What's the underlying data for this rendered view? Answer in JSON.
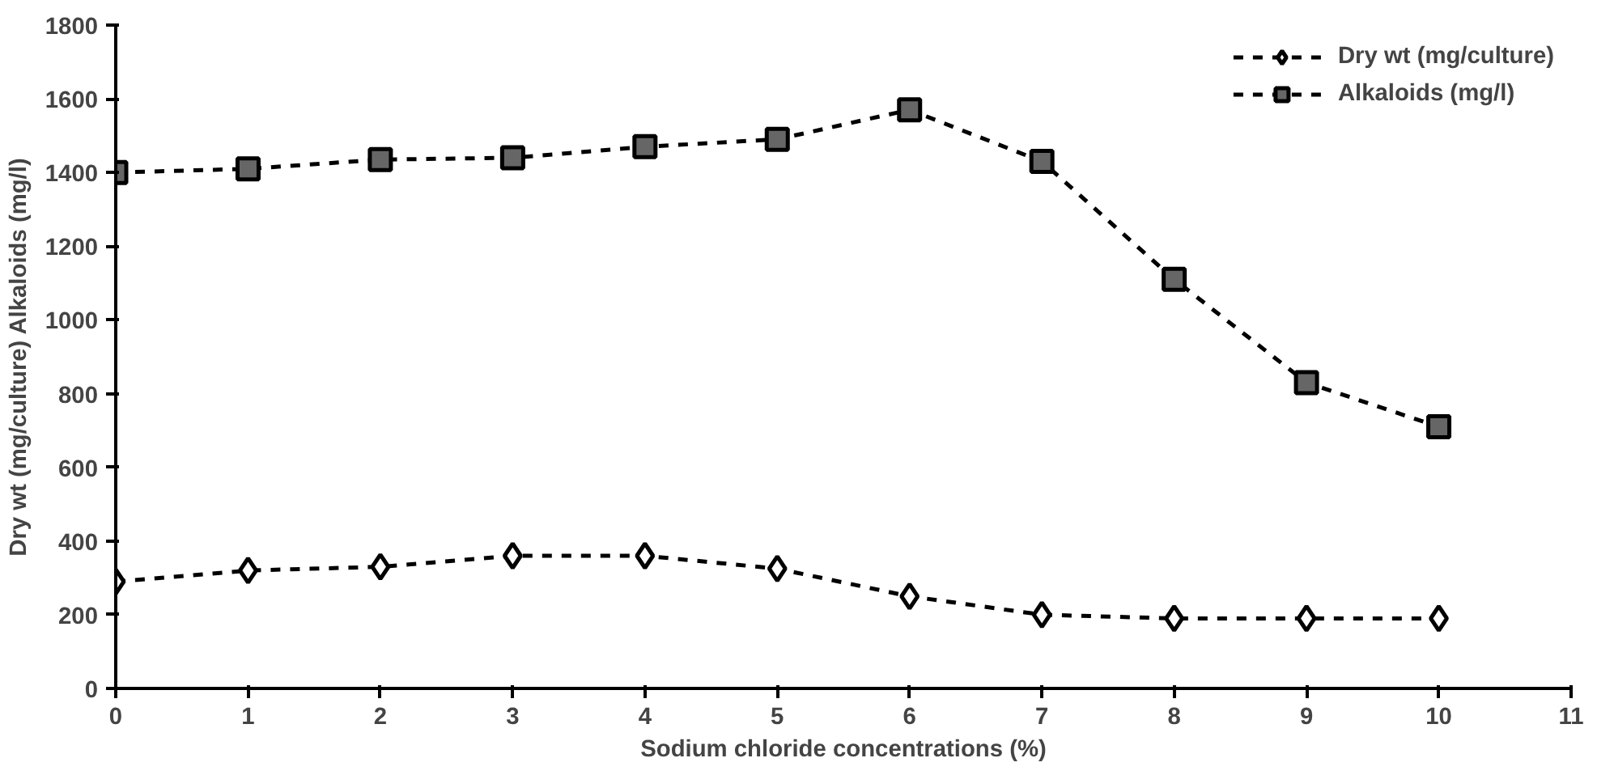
{
  "chart_data": {
    "type": "line",
    "xlabel": "Sodium chloride concentrations (%)",
    "ylabel": "Dry wt (mg/culture) Alkaloids (mg/l)",
    "x": [
      0,
      1,
      2,
      3,
      4,
      5,
      6,
      7,
      8,
      9,
      10
    ],
    "series": [
      {
        "name": "Dry wt (mg/culture)",
        "color": "#ffffff",
        "marker": "diamond",
        "values": [
          290,
          320,
          330,
          360,
          360,
          325,
          250,
          200,
          190,
          190,
          190
        ]
      },
      {
        "name": "Alkaloids (mg/l)",
        "color": "#666666",
        "marker": "square",
        "values": [
          1400,
          1410,
          1435,
          1440,
          1470,
          1490,
          1570,
          1430,
          1110,
          830,
          710
        ]
      }
    ],
    "xlim": [
      0,
      11
    ],
    "xticks": [
      0,
      1,
      2,
      3,
      4,
      5,
      6,
      7,
      8,
      9,
      10,
      11
    ],
    "ylim": [
      0,
      1800
    ],
    "yticks": [
      0,
      200,
      400,
      600,
      800,
      1000,
      1200,
      1400,
      1600,
      1800
    ],
    "line_style": "dashed",
    "legend": "top right",
    "grid": false
  }
}
